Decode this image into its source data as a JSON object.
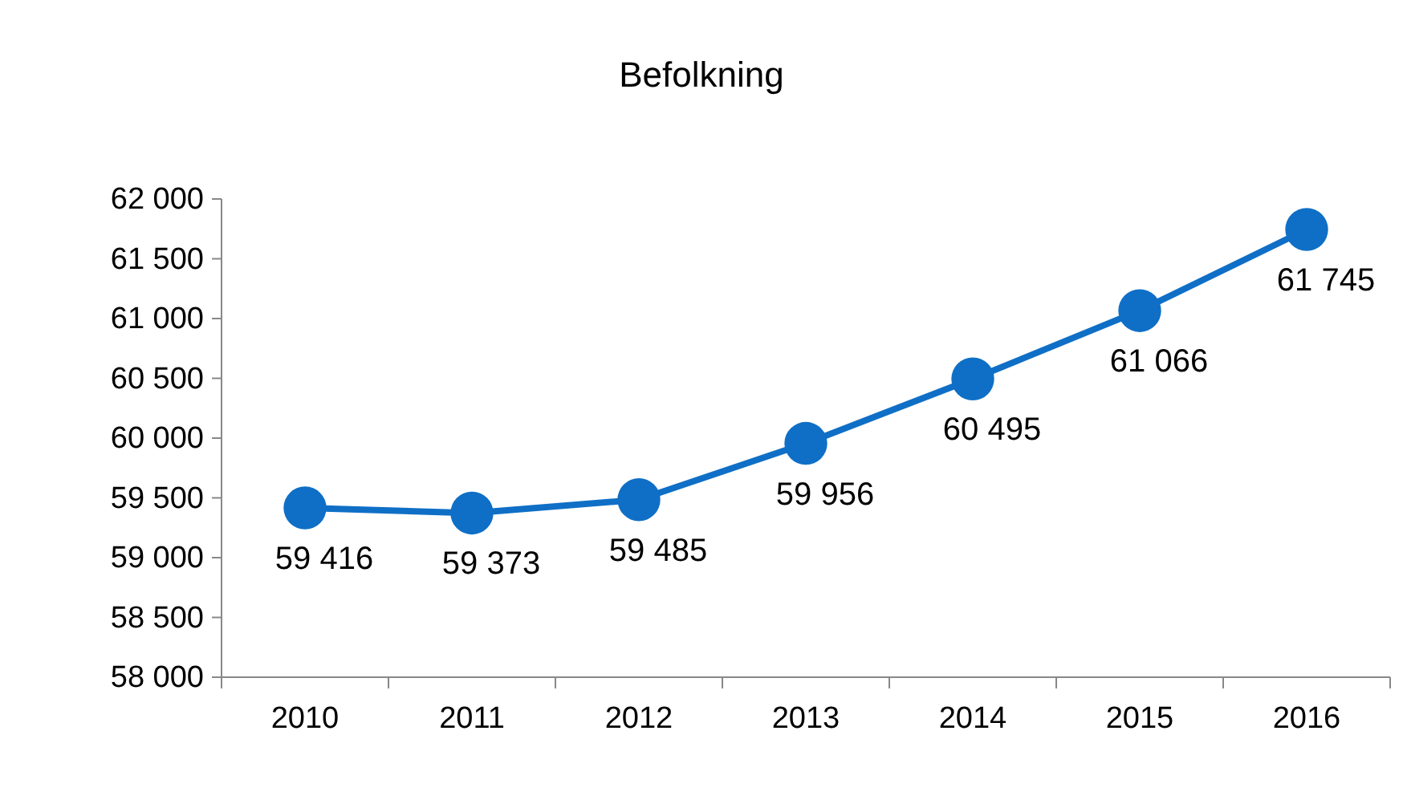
{
  "chart_data": {
    "type": "line",
    "title": "Befolkning",
    "categories": [
      "2010",
      "2011",
      "2012",
      "2013",
      "2014",
      "2015",
      "2016"
    ],
    "series": [
      {
        "color": "#0f6fc6",
        "values": [
          59416,
          59373,
          59485,
          59956,
          60495,
          61066,
          61745
        ],
        "value_labels": [
          "59 416",
          "59 373",
          "59 485",
          "59 956",
          "60 495",
          "61 066",
          "61 745"
        ]
      }
    ],
    "ylim": [
      58000,
      62000
    ],
    "yticks": [
      {
        "value": 58000,
        "label": "58 000"
      },
      {
        "value": 58500,
        "label": "58 500"
      },
      {
        "value": 59000,
        "label": "59 000"
      },
      {
        "value": 59500,
        "label": "59 500"
      },
      {
        "value": 60000,
        "label": "60 000"
      },
      {
        "value": 60500,
        "label": "60 500"
      },
      {
        "value": 61000,
        "label": "61 000"
      },
      {
        "value": 61500,
        "label": "61 500"
      },
      {
        "value": 62000,
        "label": "62 000"
      }
    ],
    "marker": "circle",
    "line_style": "solid",
    "grid": false
  }
}
